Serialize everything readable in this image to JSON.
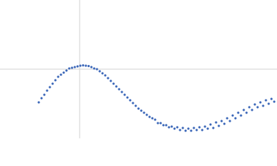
{
  "chart_data": {
    "type": "scatter",
    "xlim": [
      0,
      400
    ],
    "ylim": [
      0,
      200
    ],
    "xline": 115,
    "yline": 100,
    "color": "#3a66b8",
    "x": [
      56,
      60,
      64,
      68,
      72,
      76,
      80,
      84,
      88,
      92,
      96,
      100,
      104,
      108,
      112,
      116,
      120,
      124,
      128,
      132,
      136,
      140,
      144,
      148,
      152,
      156,
      160,
      164,
      168,
      172,
      176,
      180,
      184,
      188,
      192,
      196,
      200,
      204,
      208,
      212,
      216,
      220,
      224,
      228,
      232,
      236,
      240,
      244,
      248,
      252,
      256,
      260,
      264,
      268,
      272,
      276,
      280,
      284,
      288,
      292,
      296,
      300,
      304,
      308,
      312,
      316,
      320,
      324,
      328,
      332,
      336,
      340,
      344,
      348,
      352,
      356,
      360,
      364,
      368,
      372,
      376,
      380,
      384,
      388,
      392,
      396
    ],
    "values": [
      52,
      58,
      63,
      69,
      74,
      79,
      84,
      89,
      92,
      95,
      98,
      101,
      102,
      103,
      104,
      105,
      105.5,
      105,
      104.5,
      103,
      101,
      100,
      97,
      94,
      91,
      87,
      83,
      79,
      75,
      71,
      67,
      63,
      59,
      55,
      51,
      47,
      43,
      40,
      37,
      34,
      31,
      29,
      27,
      22,
      22,
      19,
      19,
      16,
      17,
      14,
      16,
      12,
      15,
      11,
      14,
      11,
      15,
      12,
      16,
      12,
      17,
      14,
      20,
      15,
      23,
      18,
      25,
      21,
      29,
      25,
      33,
      29,
      37,
      33,
      41,
      37,
      45,
      41,
      49,
      45,
      52,
      47,
      55,
      50,
      57,
      53
    ]
  }
}
